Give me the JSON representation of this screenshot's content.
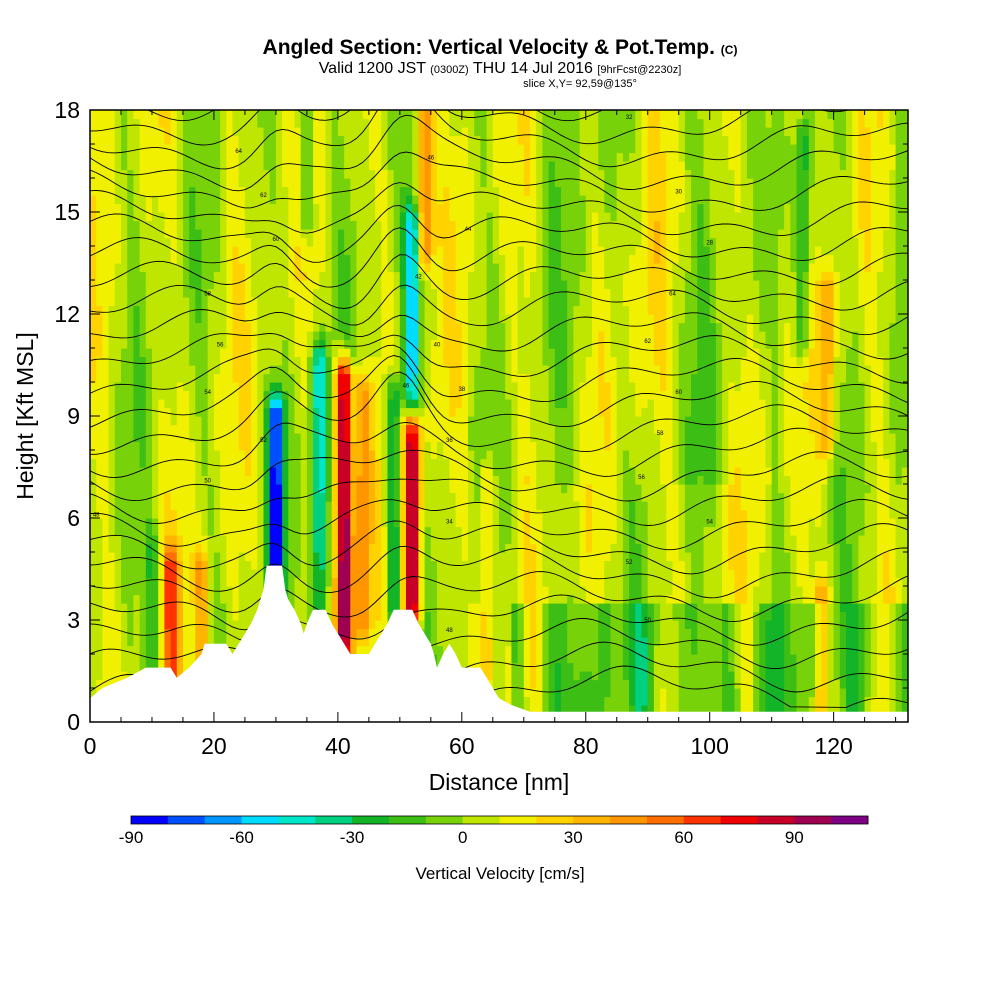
{
  "header": {
    "title_main": "Angled Section: Vertical Velocity & Pot.Temp.",
    "title_tag": "(C)",
    "valid_prefix": "Valid 1200 JST",
    "valid_zulu": "(0300Z)",
    "valid_date": "THU 14 Jul 2016",
    "valid_fcst": "[9hrFcst@2230z]",
    "slice": "slice X,Y= 92,59@135°"
  },
  "chart_data": {
    "type": "heatmap",
    "xlabel": "Distance [nm]",
    "ylabel": "Height [Kft MSL]",
    "xlim": [
      0,
      132
    ],
    "ylim": [
      0,
      18
    ],
    "xticks": [
      0,
      20,
      40,
      60,
      80,
      100,
      120
    ],
    "yticks": [
      0,
      3,
      6,
      9,
      12,
      15,
      18
    ],
    "colorbar": {
      "label": "Vertical Velocity [cm/s]",
      "tick_values": [
        -90,
        -60,
        -30,
        0,
        30,
        60,
        90
      ],
      "range": [
        -90,
        110
      ],
      "colors": [
        "#0000ff",
        "#0050ff",
        "#0096ff",
        "#00dcff",
        "#00e6c8",
        "#00d080",
        "#14b428",
        "#3cbe14",
        "#78d20a",
        "#bee600",
        "#f0f000",
        "#ffd200",
        "#ffb400",
        "#ff9600",
        "#ff6e00",
        "#ff3200",
        "#f00000",
        "#c80028",
        "#a00050",
        "#7d0082"
      ]
    },
    "theta_contour_labels": [
      "64",
      "62",
      "60",
      "58",
      "56",
      "54",
      "52",
      "50",
      "48",
      "46",
      "44",
      "42",
      "40",
      "38",
      "36",
      "34",
      "32",
      "30",
      "28"
    ],
    "terrain_kft": [
      [
        0,
        0.7
      ],
      [
        2,
        1.0
      ],
      [
        6,
        1.3
      ],
      [
        9,
        1.6
      ],
      [
        13,
        1.6
      ],
      [
        14,
        1.3
      ],
      [
        16,
        1.6
      ],
      [
        18,
        2.0
      ],
      [
        18.5,
        2.3
      ],
      [
        22,
        2.3
      ],
      [
        23,
        2.0
      ],
      [
        24,
        2.3
      ],
      [
        25,
        2.6
      ],
      [
        26,
        2.9
      ],
      [
        27,
        3.3
      ],
      [
        28,
        3.9
      ],
      [
        28.5,
        4.6
      ],
      [
        31,
        4.6
      ],
      [
        31.5,
        3.9
      ],
      [
        32,
        3.6
      ],
      [
        33,
        3.3
      ],
      [
        34,
        2.9
      ],
      [
        34.5,
        2.6
      ],
      [
        35,
        2.9
      ],
      [
        36,
        3.3
      ],
      [
        38,
        3.3
      ],
      [
        39,
        2.9
      ],
      [
        40,
        2.6
      ],
      [
        41,
        2.3
      ],
      [
        42,
        2.0
      ],
      [
        45,
        2.0
      ],
      [
        46,
        2.3
      ],
      [
        47,
        2.6
      ],
      [
        48,
        2.9
      ],
      [
        49,
        3.3
      ],
      [
        52,
        3.3
      ],
      [
        53,
        2.9
      ],
      [
        54,
        2.6
      ],
      [
        55,
        2.3
      ],
      [
        55.5,
        2.0
      ],
      [
        56,
        1.6
      ],
      [
        57,
        2.0
      ],
      [
        58,
        2.3
      ],
      [
        59,
        2.0
      ],
      [
        60,
        1.6
      ],
      [
        63,
        1.6
      ],
      [
        64,
        1.3
      ],
      [
        65,
        1.0
      ],
      [
        66,
        0.7
      ],
      [
        68,
        0.5
      ],
      [
        71,
        0.3
      ],
      [
        132,
        0.3
      ]
    ],
    "velocity_features": [
      {
        "x": 30,
        "y0": 4.0,
        "y1": 9.0,
        "w": -85
      },
      {
        "x": 37,
        "y0": 3.2,
        "y1": 10.5,
        "w": -55
      },
      {
        "x": 41,
        "y0": 2.5,
        "y1": 10.0,
        "w": 100
      },
      {
        "x": 44,
        "y0": 3.0,
        "y1": 9.5,
        "w": 45
      },
      {
        "x": 49,
        "y0": 3.5,
        "y1": 9.5,
        "w": -45
      },
      {
        "x": 52,
        "y0": 3.5,
        "y1": 8.5,
        "w": 95
      },
      {
        "x": 52,
        "y0": 9.5,
        "y1": 14.5,
        "w": -60
      },
      {
        "x": 54,
        "y0": 14.0,
        "y1": 18.0,
        "w": 50
      },
      {
        "x": 35,
        "y0": 15.0,
        "y1": 18.0,
        "w": -30
      },
      {
        "x": 115,
        "y0": 11.5,
        "y1": 17.0,
        "w": -40
      },
      {
        "x": 119,
        "y0": 8.5,
        "y1": 12.5,
        "w": 35
      },
      {
        "x": 13,
        "y0": 1.5,
        "y1": 4.5,
        "w": 45
      },
      {
        "x": 18,
        "y0": 1.5,
        "y1": 4.5,
        "w": 35
      },
      {
        "x": 10,
        "y0": 1.5,
        "y1": 5.0,
        "w": -25
      },
      {
        "x": 64,
        "y0": 1.5,
        "y1": 7.0,
        "w": 30
      },
      {
        "x": 118,
        "y0": 0.3,
        "y1": 3.5,
        "w": 40
      }
    ]
  }
}
